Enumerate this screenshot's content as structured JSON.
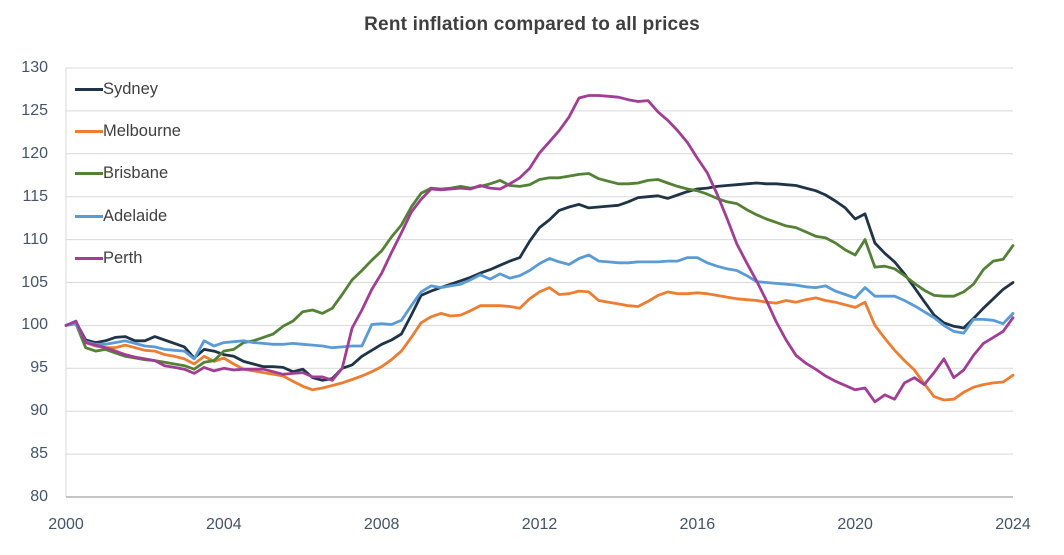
{
  "title": "Rent inflation compared to all prices",
  "style": {
    "background": "#ffffff",
    "title_color": "#3f3f3f",
    "axis_label_color": "#44546a",
    "gridline_color": "#d9d9d9",
    "axis_line_color": "#b0b0b0",
    "legend_text_color": "#404040"
  },
  "chart_data": {
    "type": "line",
    "title": "Rent inflation compared to all prices",
    "xlabel": "",
    "ylabel": "",
    "xlim": [
      2000,
      2024
    ],
    "ylim": [
      80,
      130
    ],
    "x_ticks": [
      2000,
      2004,
      2008,
      2012,
      2016,
      2020,
      2024
    ],
    "y_ticks": [
      80,
      85,
      90,
      95,
      100,
      105,
      110,
      115,
      120,
      125,
      130
    ],
    "grid": true,
    "legend_position": "top-left-inside",
    "x_start": 2000,
    "x_step": 0.25,
    "x_frequency": "quarterly, 2000 Q1 to 2024 Q1, index base 100 at 2000",
    "series": [
      {
        "name": "Sydney",
        "color": "#1f3447",
        "values": [
          100.0,
          100.4,
          98.3,
          98.0,
          98.2,
          98.6,
          98.7,
          98.2,
          98.2,
          98.7,
          98.3,
          97.9,
          97.5,
          96.2,
          97.2,
          97.0,
          96.6,
          96.4,
          95.8,
          95.5,
          95.2,
          95.2,
          95.1,
          94.6,
          94.9,
          93.9,
          93.6,
          93.8,
          95.0,
          95.4,
          96.4,
          97.1,
          97.8,
          98.3,
          99.0,
          101.2,
          103.5,
          104.0,
          104.4,
          104.8,
          105.2,
          105.6,
          106.1,
          106.5,
          107.0,
          107.5,
          107.9,
          109.8,
          111.4,
          112.3,
          113.4,
          113.8,
          114.1,
          113.7,
          113.8,
          113.9,
          114.0,
          114.4,
          114.9,
          115.0,
          115.1,
          114.8,
          115.2,
          115.6,
          115.9,
          116.0,
          116.2,
          116.3,
          116.4,
          116.5,
          116.6,
          116.5,
          116.5,
          116.4,
          116.3,
          116.0,
          115.7,
          115.2,
          114.5,
          113.7,
          112.4,
          113.0,
          109.6,
          108.4,
          107.4,
          106.0,
          104.4,
          102.8,
          101.2,
          100.3,
          99.9,
          99.7,
          100.8,
          102.0,
          103.1,
          104.2,
          105.0
        ]
      },
      {
        "name": "Melbourne",
        "color": "#ed7d31",
        "values": [
          100.0,
          100.3,
          98.0,
          97.6,
          97.4,
          97.4,
          97.7,
          97.4,
          97.1,
          97.0,
          96.6,
          96.4,
          96.1,
          95.5,
          96.4,
          95.8,
          96.2,
          95.5,
          94.9,
          94.7,
          94.5,
          94.3,
          94.1,
          93.5,
          92.9,
          92.5,
          92.7,
          93.0,
          93.3,
          93.7,
          94.1,
          94.6,
          95.2,
          96.0,
          97.0,
          98.6,
          100.3,
          101.0,
          101.4,
          101.1,
          101.2,
          101.7,
          102.3,
          102.3,
          102.3,
          102.2,
          102.0,
          103.1,
          103.9,
          104.4,
          103.6,
          103.7,
          104.0,
          103.9,
          102.9,
          102.7,
          102.5,
          102.3,
          102.2,
          102.8,
          103.5,
          103.9,
          103.7,
          103.7,
          103.8,
          103.7,
          103.5,
          103.3,
          103.1,
          103.0,
          102.9,
          102.7,
          102.6,
          102.9,
          102.7,
          103.0,
          103.2,
          102.9,
          102.7,
          102.4,
          102.1,
          102.7,
          100.0,
          98.5,
          97.1,
          95.9,
          94.8,
          93.2,
          91.7,
          91.3,
          91.4,
          92.2,
          92.8,
          93.1,
          93.3,
          93.4,
          94.2
        ]
      },
      {
        "name": "Brisbane",
        "color": "#538135",
        "values": [
          100.0,
          100.2,
          97.4,
          97.0,
          97.2,
          96.8,
          96.4,
          96.2,
          96.0,
          95.9,
          95.7,
          95.5,
          95.3,
          94.9,
          95.7,
          95.9,
          97.0,
          97.2,
          98.0,
          98.2,
          98.6,
          99.0,
          99.9,
          100.5,
          101.6,
          101.8,
          101.4,
          102.0,
          103.6,
          105.3,
          106.4,
          107.6,
          108.7,
          110.3,
          111.7,
          113.8,
          115.4,
          116.0,
          115.9,
          116.0,
          116.2,
          116.0,
          116.2,
          116.5,
          116.9,
          116.3,
          116.2,
          116.4,
          117.0,
          117.2,
          117.2,
          117.4,
          117.6,
          117.7,
          117.1,
          116.8,
          116.5,
          116.5,
          116.6,
          116.9,
          117.0,
          116.6,
          116.2,
          115.9,
          115.7,
          115.3,
          114.8,
          114.4,
          114.2,
          113.5,
          112.9,
          112.4,
          112.0,
          111.6,
          111.4,
          110.9,
          110.4,
          110.2,
          109.6,
          108.8,
          108.2,
          110.0,
          106.8,
          106.9,
          106.6,
          105.8,
          104.9,
          104.1,
          103.5,
          103.4,
          103.4,
          103.9,
          104.8,
          106.5,
          107.5,
          107.7,
          109.3
        ]
      },
      {
        "name": "Adelaide",
        "color": "#5b9bd5",
        "values": [
          100.0,
          100.2,
          98.1,
          97.8,
          97.8,
          98.0,
          98.2,
          97.9,
          97.6,
          97.5,
          97.2,
          97.1,
          97.0,
          96.1,
          98.2,
          97.6,
          98.0,
          98.1,
          98.2,
          98.0,
          97.9,
          97.8,
          97.8,
          97.9,
          97.8,
          97.7,
          97.6,
          97.4,
          97.5,
          97.6,
          97.6,
          100.1,
          100.2,
          100.1,
          100.6,
          102.3,
          103.9,
          104.6,
          104.4,
          104.6,
          104.8,
          105.3,
          105.9,
          105.4,
          106.0,
          105.5,
          105.8,
          106.4,
          107.2,
          107.8,
          107.4,
          107.1,
          107.8,
          108.2,
          107.5,
          107.4,
          107.3,
          107.3,
          107.4,
          107.4,
          107.4,
          107.5,
          107.5,
          107.9,
          107.9,
          107.3,
          106.9,
          106.6,
          106.4,
          105.8,
          105.1,
          105.0,
          104.9,
          104.8,
          104.7,
          104.5,
          104.4,
          104.6,
          104.0,
          103.6,
          103.2,
          104.4,
          103.4,
          103.4,
          103.4,
          102.9,
          102.3,
          101.6,
          100.9,
          100.0,
          99.3,
          99.1,
          100.7,
          100.7,
          100.6,
          100.2,
          101.4
        ]
      },
      {
        "name": "Perth",
        "color": "#a13d95",
        "values": [
          100.0,
          100.5,
          98.0,
          97.7,
          97.4,
          97.0,
          96.6,
          96.3,
          96.1,
          95.9,
          95.3,
          95.1,
          94.9,
          94.4,
          95.1,
          94.7,
          95.0,
          94.8,
          94.9,
          94.9,
          94.9,
          94.6,
          94.3,
          94.4,
          94.5,
          94.0,
          94.0,
          93.6,
          95.0,
          99.7,
          101.8,
          104.2,
          106.1,
          108.5,
          110.8,
          113.2,
          114.7,
          115.9,
          115.8,
          115.9,
          116.0,
          115.9,
          116.3,
          116.0,
          115.9,
          116.5,
          117.2,
          118.3,
          120.1,
          121.4,
          122.7,
          124.3,
          126.5,
          126.8,
          126.8,
          126.7,
          126.6,
          126.3,
          126.1,
          126.2,
          124.9,
          123.9,
          122.7,
          121.3,
          119.5,
          117.8,
          115.3,
          112.5,
          109.5,
          107.3,
          105.2,
          102.9,
          100.4,
          98.3,
          96.5,
          95.6,
          94.9,
          94.1,
          93.5,
          93.0,
          92.5,
          92.7,
          91.1,
          91.9,
          91.4,
          93.3,
          93.9,
          93.1,
          94.5,
          96.1,
          93.9,
          94.8,
          96.5,
          97.9,
          98.6,
          99.3,
          100.9
        ]
      }
    ]
  }
}
